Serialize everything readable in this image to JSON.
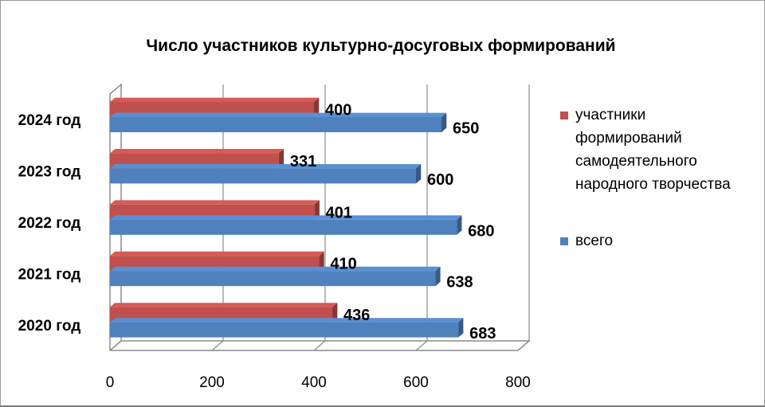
{
  "chart_data": {
    "type": "bar",
    "orientation": "horizontal",
    "title": "Число участников культурно-досуговых формирований",
    "categories": [
      "2024 год",
      "2023 год",
      "2022 год",
      "2021 год",
      "2020 год"
    ],
    "series": [
      {
        "name": "участники формирований самодеятельного народного творчества",
        "color": "#c0504d",
        "values": [
          400,
          331,
          401,
          410,
          436
        ]
      },
      {
        "name": "всего",
        "color": "#4f81bd",
        "values": [
          650,
          600,
          680,
          638,
          683
        ]
      }
    ],
    "xlim": [
      0,
      800
    ],
    "xticks": [
      0,
      200,
      400,
      600,
      800
    ],
    "xlabel": "",
    "ylabel": "",
    "legend_position": "right",
    "legend_lines": [
      [
        "участники",
        "формирований",
        "самодеятельного",
        "народного творчества"
      ],
      [
        "всего"
      ]
    ],
    "grid": true
  }
}
